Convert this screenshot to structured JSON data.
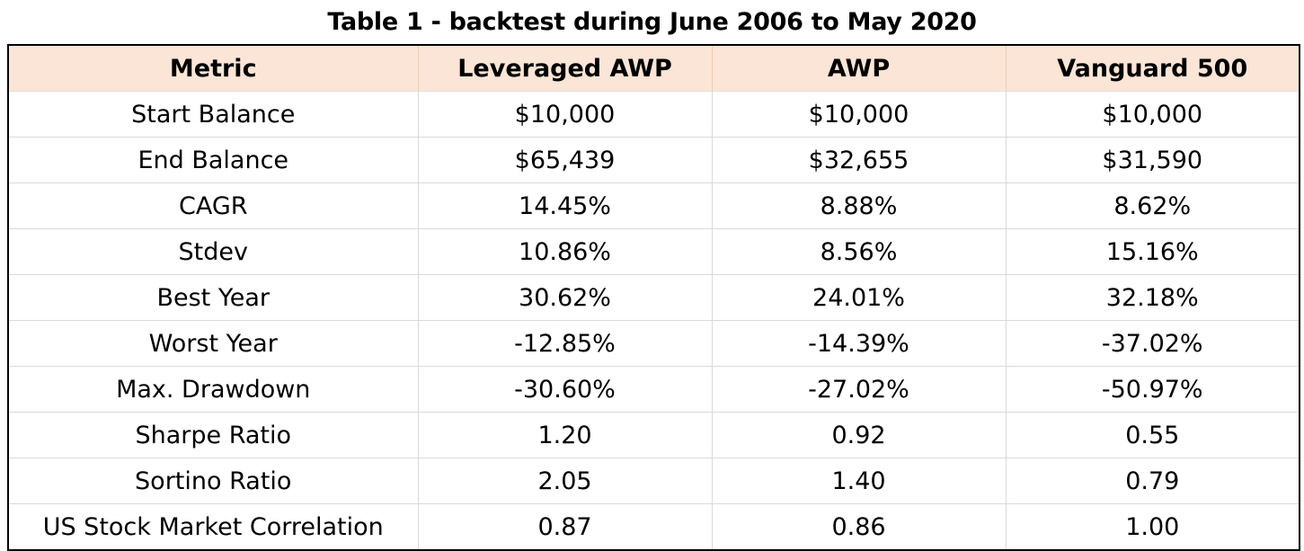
{
  "title": "Table 1 - backtest during June 2006 to  May 2020",
  "columns": [
    "Metric",
    "Leveraged AWP",
    "AWP",
    "Vanguard 500"
  ],
  "header_bg_color": "#fbe5d6",
  "rows": [
    [
      "Start Balance",
      "$10,000",
      "$10,000",
      "$10,000"
    ],
    [
      "End Balance",
      "$65,439",
      "$32,655",
      "$31,590"
    ],
    [
      "CAGR",
      "14.45%",
      "8.88%",
      "8.62%"
    ],
    [
      "Stdev",
      "10.86%",
      "8.56%",
      "15.16%"
    ],
    [
      "Best Year",
      "30.62%",
      "24.01%",
      "32.18%"
    ],
    [
      "Worst Year",
      "-12.85%",
      "-14.39%",
      "-37.02%"
    ],
    [
      "Max. Drawdown",
      "-30.60%",
      "-27.02%",
      "-50.97%"
    ],
    [
      "Sharpe Ratio",
      "1.20",
      "0.92",
      "0.55"
    ],
    [
      "Sortino Ratio",
      "2.05",
      "1.40",
      "0.79"
    ],
    [
      "US Stock Market Correlation",
      "0.87",
      "0.86",
      "1.00"
    ]
  ]
}
